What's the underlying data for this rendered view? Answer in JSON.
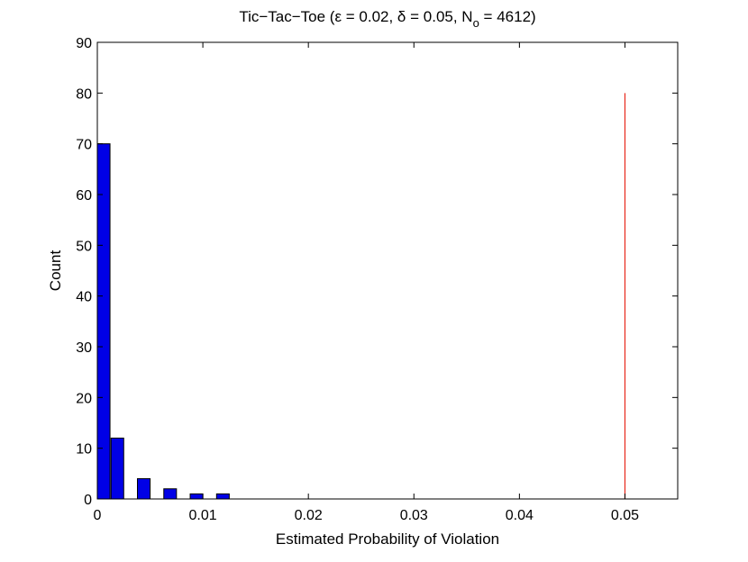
{
  "chart_data": {
    "type": "bar",
    "title": "Tic−Tac−Toe (ε = 0.02, δ = 0.05, N",
    "title_subscript": "o",
    "title_suffix": " = 4612)",
    "xlabel": "Estimated Probability of Violation",
    "ylabel": "Count",
    "xlim": [
      0,
      0.055
    ],
    "ylim": [
      0,
      90
    ],
    "xticks": [
      0,
      0.01,
      0.02,
      0.03,
      0.04,
      0.05
    ],
    "xtick_labels": [
      "0",
      "0.01",
      "0.02",
      "0.03",
      "0.04",
      "0.05"
    ],
    "yticks": [
      0,
      10,
      20,
      30,
      40,
      50,
      60,
      70,
      80,
      90
    ],
    "ytick_labels": [
      "0",
      "10",
      "20",
      "30",
      "40",
      "50",
      "60",
      "70",
      "80",
      "90"
    ],
    "bar_width": 0.0012,
    "bars": [
      {
        "x": 0.0006,
        "value": 70
      },
      {
        "x": 0.0019,
        "value": 12
      },
      {
        "x": 0.0044,
        "value": 4
      },
      {
        "x": 0.0069,
        "value": 2
      },
      {
        "x": 0.0094,
        "value": 1
      },
      {
        "x": 0.0119,
        "value": 1
      }
    ],
    "bar_color": "#0000e6",
    "bar_edge_color": "#000000",
    "reference_line": {
      "x": 0.05,
      "y_from": 0,
      "y_to": 80,
      "color": "#e8261b"
    },
    "grid": false,
    "legend": "none"
  }
}
